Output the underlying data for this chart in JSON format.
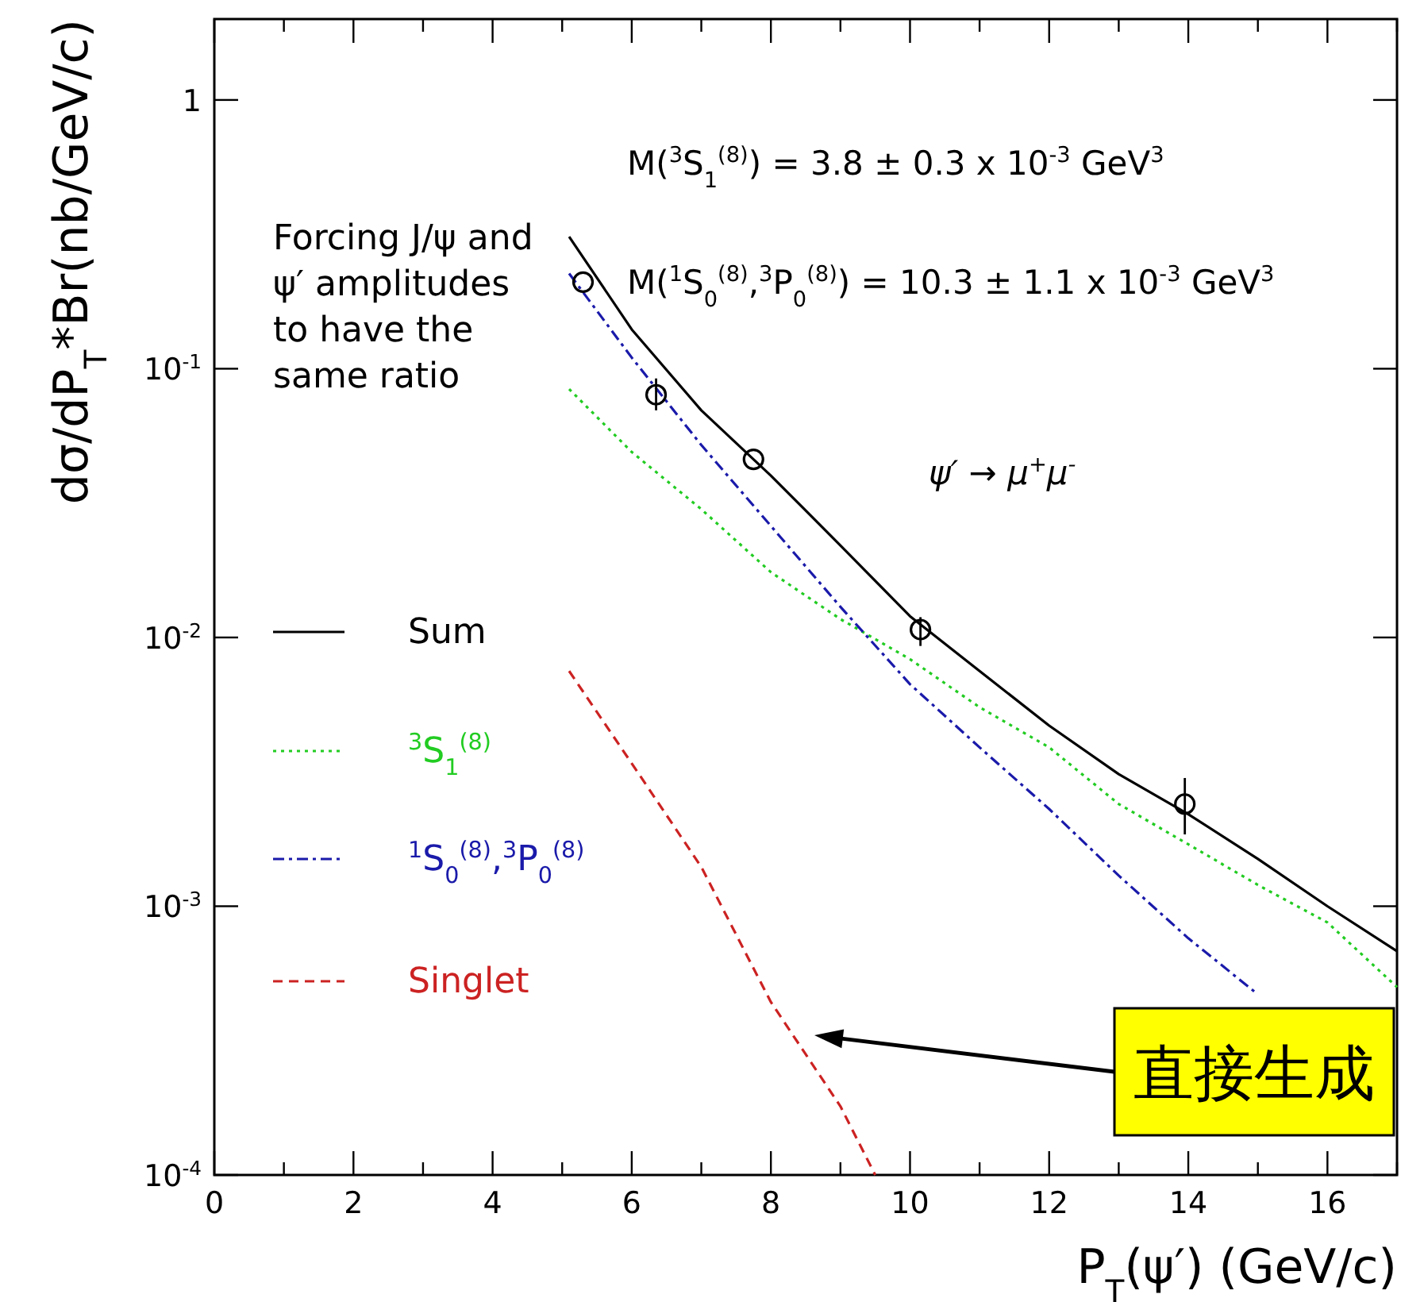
{
  "chart_data": {
    "type": "line",
    "xlabel": "P$_{T}$(ψ′) (GeV/c)",
    "ylabel": "dσ/dP$_{T}$*Br(nb/GeV/c)",
    "xlim": [
      0,
      17
    ],
    "ylim": [
      0.0001,
      2
    ],
    "log": "y",
    "legend": "left",
    "xticks": [
      0,
      {
        "value": 1,
        "label": null
      },
      2,
      {
        "value": 3,
        "label": null
      },
      4,
      {
        "value": 5,
        "label": null
      },
      6,
      {
        "value": 7,
        "label": null
      },
      8,
      {
        "value": 9,
        "label": null
      },
      10,
      {
        "value": 11,
        "label": null
      },
      12,
      {
        "value": 13,
        "label": null
      },
      14,
      {
        "value": 15,
        "label": null
      },
      16,
      {
        "value": 17,
        "label": null
      }
    ],
    "yticks": [
      {
        "value": 0.0001,
        "label": "10$^{-4}$"
      },
      {
        "value": 0.001,
        "label": "10$^{-3}$"
      },
      {
        "value": 0.01,
        "label": "10$^{-2}$"
      },
      {
        "value": 0.1,
        "label": "10$^{-1}$"
      },
      1
    ],
    "series": [
      {
        "name": "Sum",
        "color": "#000000",
        "line_style": "solid",
        "x": [
          5.1,
          6,
          7,
          8,
          9,
          10,
          11,
          12,
          13,
          14,
          15,
          16,
          17
        ],
        "values": [
          0.31,
          0.14,
          0.07,
          0.04,
          0.022,
          0.012,
          0.0075,
          0.0047,
          0.0031,
          0.0022,
          0.0015,
          0.001,
          0.00068
        ]
      },
      {
        "name": "$^{3}$S$_{1}$$^{(8)}$",
        "color": "#22cc22",
        "line_style": "dotted",
        "x": [
          5.1,
          6,
          7,
          8,
          9,
          10,
          11,
          12,
          13,
          14,
          15,
          16,
          17
        ],
        "values": [
          0.084,
          0.049,
          0.03,
          0.0175,
          0.0117,
          0.0083,
          0.0055,
          0.0039,
          0.0024,
          0.0017,
          0.0012,
          0.00087,
          0.0005
        ]
      },
      {
        "name": "$^{1}$S$_{0}$$^{(8)}$,$^{3}$P$_{0}$$^{(8)}$",
        "color": "#1a1aaa",
        "line_style": "dashdot",
        "x": [
          5.1,
          6,
          7,
          8,
          9,
          10,
          11,
          12,
          13,
          14,
          15
        ],
        "values": [
          0.226,
          0.11,
          0.052,
          0.026,
          0.013,
          0.0067,
          0.0039,
          0.0023,
          0.0013,
          0.00076,
          0.00047
        ]
      },
      {
        "name": "Singlet",
        "color": "#cc2222",
        "line_style": "dashed",
        "x": [
          5.1,
          6,
          7,
          8,
          9,
          9.5
        ],
        "values": [
          0.0075,
          0.0034,
          0.0014,
          0.00044,
          0.00018,
          0.0001
        ]
      },
      {
        "type": "scatter",
        "marker": "circle",
        "color": "#000000",
        "x": [
          5.3,
          6.35,
          7.75,
          10.15,
          13.95
        ],
        "values": [
          0.21,
          0.08,
          0.046,
          0.0107,
          0.0024
        ],
        "errors": [
          null,
          [
            0.07,
            0.092
          ],
          null,
          [
            0.0093,
            0.0119
          ],
          [
            0.00185,
            0.003
          ]
        ]
      }
    ],
    "annotations": [
      "M($^{3}$S$_{1}$$^{(8)}$) = 3.8 ± 0.3 x 10$^{-3}$ GeV$^{3}$",
      "M($^{1}$S$_{0}$$^{(8)}$,$^{3}$P$_{0}$$^{(8)}$) = 10.3 ± 1.1 x 10$^{-3}$ GeV$^{3}$",
      "ψ′ → μ$^{+}$μ$^{-}$",
      "Forcing J/ψ and ψ′ amplitudes to have the same ratio",
      "直接生成"
    ]
  }
}
